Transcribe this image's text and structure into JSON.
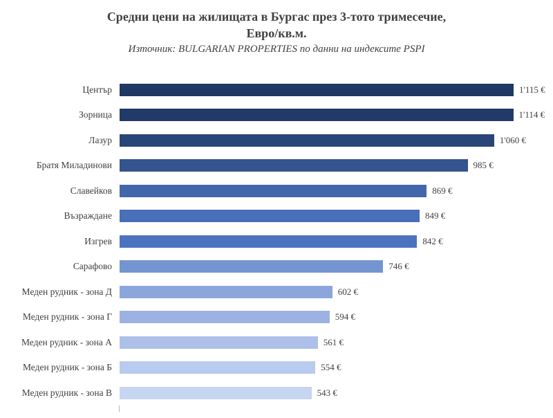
{
  "title": "Средни цени на жилищата в Бургас през 3-тото тримесечие,\nЕвро/кв.м.",
  "subtitle": "Източник: BULGARIAN PROPERTIES по данни на индексите PSPI",
  "chart_data": {
    "type": "bar",
    "orientation": "horizontal",
    "title": "Средни цени на жилищата в Бургас през 3-тото тримесечие, Евро/кв.м.",
    "subtitle": "Източник: BULGARIAN PROPERTIES по данни на индексите PSPI",
    "unit": "€/кв.м.",
    "xlabel": "",
    "ylabel": "",
    "xlim": [
      0,
      1200
    ],
    "grid": false,
    "legend": "none",
    "categories": [
      "Център",
      "Зорница",
      "Лазур",
      "Братя Миладинови",
      "Славейков",
      "Възраждане",
      "Изгрев",
      "Сарафово",
      "Меден рудник - зона Д",
      "Меден рудник - зона Г",
      "Меден рудник - зона А",
      "Меден рудник - зона Б",
      "Меден рудник - зона В"
    ],
    "values": [
      1115,
      1114,
      1060,
      985,
      869,
      849,
      842,
      746,
      602,
      594,
      561,
      554,
      543
    ],
    "value_labels": [
      "1'115 €",
      "1'114 €",
      "1'060 €",
      "985 €",
      "869 €",
      "849 €",
      "842 €",
      "746 €",
      "602 €",
      "594 €",
      "561 €",
      "554 €",
      "543 €"
    ],
    "bar_colors": [
      "#1f3864",
      "#213a68",
      "#2a4679",
      "#34538f",
      "#4267aa",
      "#486fb8",
      "#4c73bf",
      "#7495d2",
      "#8ca6dc",
      "#9bb2e2",
      "#acc0e9",
      "#b9cbee",
      "#c6d5f2"
    ]
  }
}
